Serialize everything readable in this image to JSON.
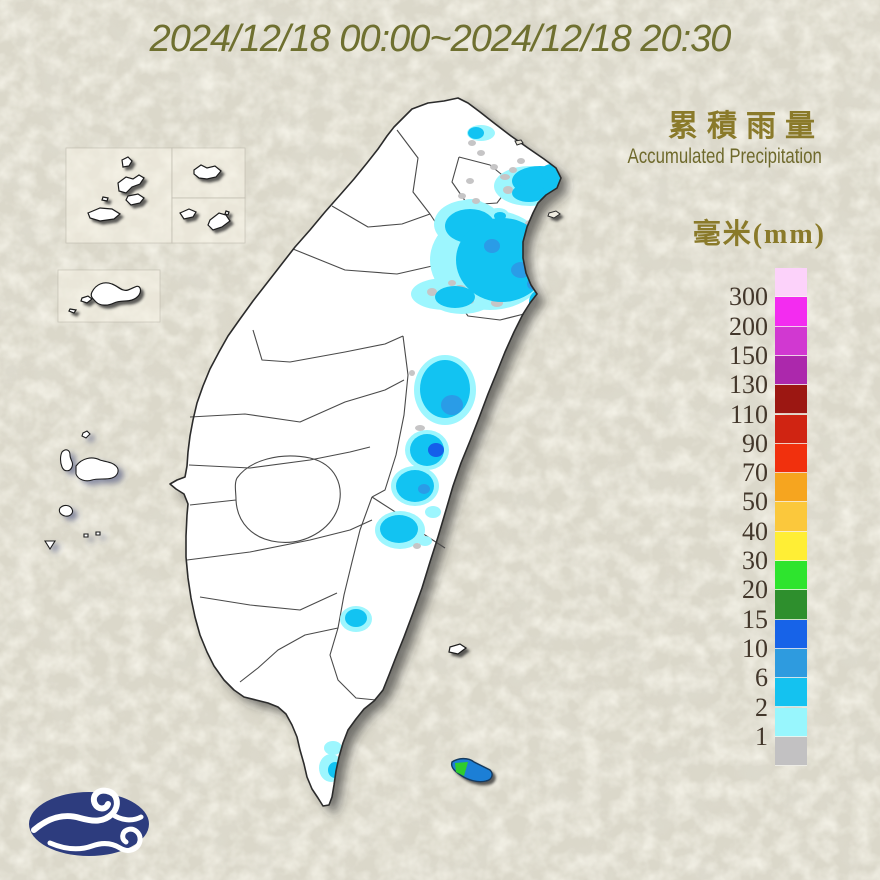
{
  "header": {
    "title": "2024/12/18 00:00~2024/12/18 20:30"
  },
  "panel": {
    "title_zh": "累積雨量",
    "title_en": "Accumulated Precipitation",
    "unit_label": "毫米(mm)"
  },
  "legend": {
    "labels": [
      "300",
      "200",
      "150",
      "130",
      "110",
      "90",
      "70",
      "50",
      "40",
      "30",
      "20",
      "15",
      "10",
      "6",
      "2",
      "1"
    ],
    "colors_top_to_bottom": [
      "#fcd2fa",
      "#f32cf0",
      "#d138d1",
      "#ac28ac",
      "#9c1712",
      "#d02412",
      "#f1300d",
      "#f6a51f",
      "#fbc83c",
      "#ffee35",
      "#2ee42e",
      "#2e8f2d",
      "#1763e8",
      "#2e9bdf",
      "#14c2f0",
      "#98f6fd",
      "#c2c1c2"
    ],
    "label_color": "#43372b"
  },
  "map": {
    "island_fill": "#ffffff",
    "coast_color": "#2b2b2b",
    "county_color": "#4a4a4a",
    "lanyu_fill": "#1e7fd6",
    "lanyu_patch": "#2ecc2e",
    "level_colors": {
      "trace": "#c6c5c6",
      "1": "#9df6fe",
      "2": "#12c3f2",
      "6": "#2a9ce7",
      "10": "#155fea"
    },
    "rain_cells": [
      [
        481,
        133,
        14,
        8,
        "1"
      ],
      [
        530,
        186,
        36,
        20,
        "1"
      ],
      [
        471,
        207,
        14,
        8,
        "1"
      ],
      [
        498,
        215,
        11,
        7,
        "1"
      ],
      [
        468,
        224,
        34,
        24,
        "1"
      ],
      [
        490,
        260,
        60,
        50,
        "1"
      ],
      [
        445,
        294,
        34,
        16,
        "1"
      ],
      [
        462,
        300,
        30,
        14,
        "1"
      ],
      [
        445,
        390,
        31,
        35,
        "1"
      ],
      [
        427,
        450,
        22,
        20,
        "1"
      ],
      [
        415,
        486,
        24,
        20,
        "1"
      ],
      [
        400,
        530,
        25,
        19,
        "1"
      ],
      [
        433,
        512,
        8,
        6,
        "1"
      ],
      [
        425,
        541,
        7,
        5,
        "1"
      ],
      [
        356,
        619,
        16,
        13,
        "1"
      ],
      [
        333,
        748,
        9,
        7,
        "1"
      ],
      [
        331,
        768,
        12,
        14,
        "1"
      ],
      [
        472,
        143,
        4,
        3,
        "trace"
      ],
      [
        481,
        153,
        4,
        3,
        "trace"
      ],
      [
        494,
        167,
        4,
        3,
        "trace"
      ],
      [
        505,
        177,
        5,
        3,
        "trace"
      ],
      [
        470,
        181,
        4,
        3,
        "trace"
      ],
      [
        462,
        196,
        4,
        3,
        "trace"
      ],
      [
        476,
        201,
        4,
        3,
        "trace"
      ],
      [
        513,
        170,
        4,
        3,
        "trace"
      ],
      [
        521,
        161,
        4,
        3,
        "trace"
      ],
      [
        508,
        190,
        5,
        4,
        "trace"
      ],
      [
        466,
        228,
        5,
        3,
        "trace"
      ],
      [
        478,
        233,
        4,
        3,
        "trace"
      ],
      [
        513,
        222,
        4,
        3,
        "trace"
      ],
      [
        530,
        224,
        5,
        4,
        "trace"
      ],
      [
        547,
        209,
        4,
        3,
        "trace"
      ],
      [
        497,
        303,
        6,
        4,
        "trace"
      ],
      [
        476,
        287,
        5,
        4,
        "trace"
      ],
      [
        460,
        289,
        6,
        4,
        "trace"
      ],
      [
        470,
        301,
        4,
        3,
        "trace"
      ],
      [
        452,
        283,
        4,
        3,
        "trace"
      ],
      [
        432,
        292,
        5,
        4,
        "trace"
      ],
      [
        420,
        428,
        5,
        3,
        "trace"
      ],
      [
        417,
        546,
        4,
        3,
        "trace"
      ],
      [
        412,
        373,
        3,
        3,
        "trace"
      ],
      [
        476,
        133,
        8,
        6,
        "2"
      ],
      [
        540,
        181,
        28,
        15,
        "2"
      ],
      [
        529,
        193,
        17,
        9,
        "2"
      ],
      [
        552,
        172,
        11,
        8,
        "2"
      ],
      [
        500,
        216,
        6,
        4,
        "2"
      ],
      [
        470,
        226,
        25,
        17,
        "2"
      ],
      [
        502,
        260,
        46,
        42,
        "2"
      ],
      [
        455,
        297,
        20,
        11,
        "2"
      ],
      [
        540,
        302,
        11,
        12,
        "2"
      ],
      [
        445,
        389,
        25,
        29,
        "2"
      ],
      [
        427,
        450,
        17,
        16,
        "2"
      ],
      [
        415,
        486,
        19,
        16,
        "2"
      ],
      [
        399,
        529,
        19,
        14,
        "2"
      ],
      [
        356,
        618,
        11,
        9,
        "2"
      ],
      [
        335,
        770,
        7,
        8,
        "2"
      ],
      [
        492,
        246,
        8,
        7,
        "6"
      ],
      [
        521,
        270,
        10,
        8,
        "6"
      ],
      [
        534,
        284,
        7,
        6,
        "6"
      ],
      [
        546,
        292,
        5,
        4,
        "6"
      ],
      [
        452,
        405,
        11,
        10,
        "6"
      ],
      [
        424,
        489,
        6,
        5,
        "6"
      ],
      [
        436,
        450,
        8,
        7,
        "10"
      ],
      [
        486,
        792,
        4,
        3,
        "10"
      ]
    ]
  },
  "logo": {
    "name": "central-weather-administration-logo",
    "bg_color": "#2d3c7e"
  }
}
